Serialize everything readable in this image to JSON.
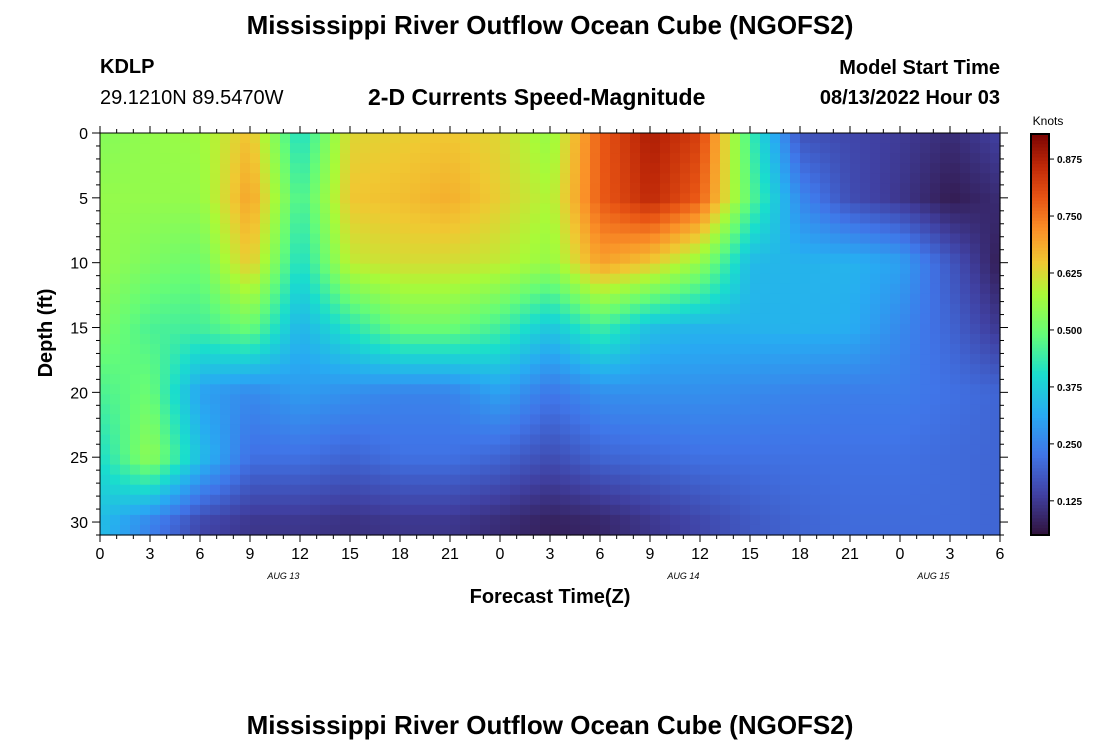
{
  "header": {
    "title": "Mississippi River Outflow Ocean Cube (NGOFS2)",
    "station": "KDLP",
    "coords": "29.1210N  89.5470W",
    "subtitle": "2-D Currents Speed-Magnitude",
    "model_start_label": "Model Start Time",
    "model_start_value": "08/13/2022 Hour 03"
  },
  "footer": {
    "title": "Mississippi River Outflow Ocean Cube (NGOFS2)"
  },
  "chart_data": {
    "type": "heatmap",
    "title": "2-D Currents Speed-Magnitude",
    "xlabel": "Forecast Time(Z)",
    "ylabel": "Depth (ft)",
    "x_range_hours": [
      0,
      54
    ],
    "ylim": [
      0,
      31
    ],
    "y_inverted": true,
    "x_tick_labels": [
      "0",
      "3",
      "6",
      "9",
      "12",
      "15",
      "18",
      "21",
      "0",
      "3",
      "6",
      "9",
      "12",
      "15",
      "18",
      "21",
      "0",
      "3",
      "6"
    ],
    "y_ticks": [
      0,
      5,
      10,
      15,
      20,
      25,
      30
    ],
    "date_labels": [
      {
        "label": "AUG 13",
        "at_hour": 11
      },
      {
        "label": "AUG 14",
        "at_hour": 35
      },
      {
        "label": "AUG 15",
        "at_hour": 50
      }
    ],
    "colorbar": {
      "label": "Knots",
      "min": 0.05,
      "max": 0.93,
      "ticks": [
        0.125,
        0.25,
        0.375,
        0.5,
        0.625,
        0.75,
        0.875
      ],
      "tick_labels": [
        "0.125",
        "0.250",
        "0.375",
        "0.500",
        "0.625",
        "0.750",
        "0.875"
      ]
    },
    "grid_depths_ft": [
      0,
      5,
      10,
      15,
      20,
      25,
      30
    ],
    "grid_hours": [
      0,
      3,
      6,
      9,
      12,
      15,
      18,
      21,
      24,
      27,
      30,
      33,
      36,
      39,
      42,
      45,
      48,
      51,
      54
    ],
    "speed_knots": [
      [
        0.53,
        0.55,
        0.56,
        0.66,
        0.4,
        0.63,
        0.64,
        0.65,
        0.63,
        0.55,
        0.78,
        0.88,
        0.82,
        0.45,
        0.17,
        0.15,
        0.13,
        0.1,
        0.14
      ],
      [
        0.55,
        0.55,
        0.55,
        0.7,
        0.45,
        0.65,
        0.66,
        0.68,
        0.64,
        0.58,
        0.78,
        0.86,
        0.78,
        0.48,
        0.26,
        0.16,
        0.12,
        0.07,
        0.1
      ],
      [
        0.55,
        0.52,
        0.5,
        0.65,
        0.4,
        0.6,
        0.62,
        0.62,
        0.6,
        0.55,
        0.7,
        0.65,
        0.55,
        0.34,
        0.33,
        0.33,
        0.3,
        0.18,
        0.07
      ],
      [
        0.52,
        0.46,
        0.45,
        0.5,
        0.33,
        0.42,
        0.5,
        0.5,
        0.45,
        0.36,
        0.45,
        0.35,
        0.33,
        0.33,
        0.33,
        0.32,
        0.26,
        0.2,
        0.12
      ],
      [
        0.46,
        0.5,
        0.3,
        0.26,
        0.29,
        0.27,
        0.25,
        0.25,
        0.3,
        0.23,
        0.27,
        0.27,
        0.27,
        0.26,
        0.25,
        0.24,
        0.24,
        0.22,
        0.2
      ],
      [
        0.4,
        0.55,
        0.35,
        0.22,
        0.22,
        0.2,
        0.22,
        0.22,
        0.2,
        0.16,
        0.2,
        0.21,
        0.22,
        0.22,
        0.22,
        0.22,
        0.22,
        0.21,
        0.2
      ],
      [
        0.35,
        0.25,
        0.15,
        0.12,
        0.12,
        0.11,
        0.12,
        0.12,
        0.1,
        0.08,
        0.09,
        0.12,
        0.15,
        0.18,
        0.2,
        0.21,
        0.21,
        0.21,
        0.2
      ]
    ]
  }
}
